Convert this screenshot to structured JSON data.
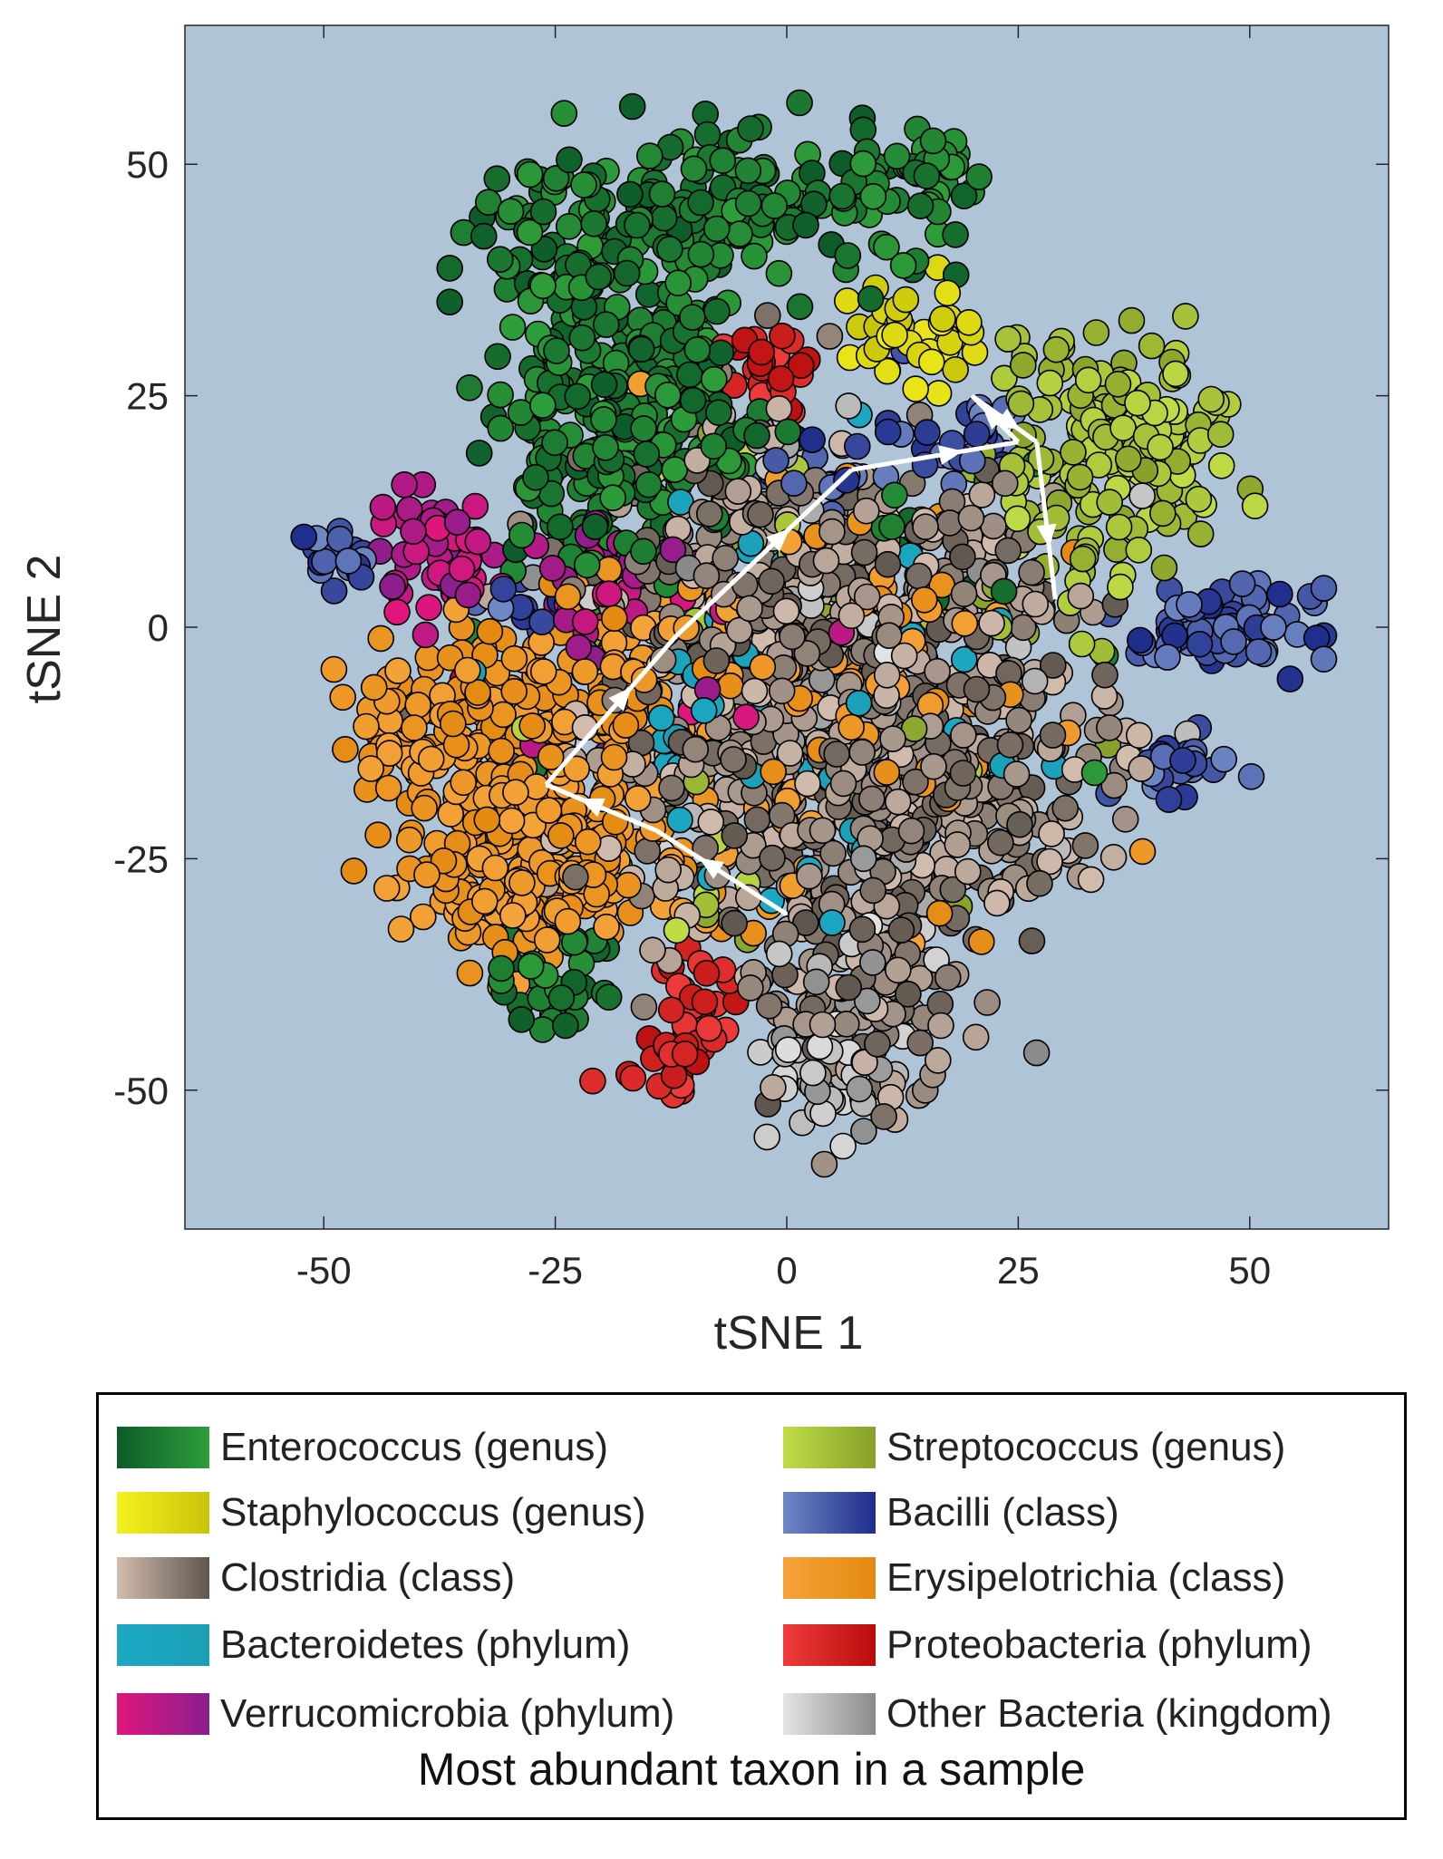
{
  "chart_data": {
    "type": "scatter",
    "title": "",
    "xlabel": "tSNE 1",
    "ylabel": "tSNE 2",
    "xlim": [
      -65,
      65
    ],
    "ylim": [
      -65,
      65
    ],
    "xticks": [
      -50,
      -25,
      0,
      25,
      50
    ],
    "yticks": [
      -50,
      -25,
      0,
      25,
      50
    ],
    "xtick_labels": [
      "-50",
      "-25",
      "0",
      "25",
      "50"
    ],
    "ytick_labels": [
      "-50",
      "-25",
      "0",
      "25",
      "50"
    ],
    "background_color": "#b0c4d8",
    "grid": false,
    "legend_position": "below",
    "legend_caption": "Most abundant taxon in a sample",
    "series": [
      {
        "name": "Enterococcus (genus)",
        "colors": [
          "#0d5b2a",
          "#2e9e3a"
        ],
        "clusters": [
          {
            "cx": -19,
            "cy": 43,
            "sx": 8,
            "sy": 5,
            "n": 110
          },
          {
            "cx": -4,
            "cy": 45,
            "sx": 6,
            "sy": 5,
            "n": 70
          },
          {
            "cx": 11,
            "cy": 46,
            "sx": 5,
            "sy": 4,
            "n": 45
          },
          {
            "cx": 16,
            "cy": 51,
            "sx": 2,
            "sy": 2,
            "n": 18
          },
          {
            "cx": -25,
            "cy": 25,
            "sx": 4,
            "sy": 10,
            "n": 120
          },
          {
            "cx": -16,
            "cy": 18,
            "sx": 5,
            "sy": 6,
            "n": 80
          },
          {
            "cx": -14,
            "cy": 30,
            "sx": 4,
            "sy": 4,
            "n": 50
          },
          {
            "cx": -6,
            "cy": 20,
            "sx": 3,
            "sy": 3,
            "n": 25
          },
          {
            "cx": -25,
            "cy": -38,
            "sx": 3,
            "sy": 3,
            "n": 35
          },
          {
            "cx": 13,
            "cy": 6,
            "sx": 10,
            "sy": 10,
            "n": 18
          }
        ]
      },
      {
        "name": "Staphylococcus (genus)",
        "colors": [
          "#f5f01e",
          "#c8c40a"
        ],
        "clusters": [
          {
            "cx": 13,
            "cy": 32,
            "sx": 4,
            "sy": 3,
            "n": 40
          }
        ]
      },
      {
        "name": "Clostridia (class)",
        "colors": [
          "#d2bcae",
          "#5e564e"
        ],
        "clusters": [
          {
            "cx": 4,
            "cy": -12,
            "sx": 12,
            "sy": 12,
            "n": 520
          },
          {
            "cx": 18,
            "cy": -18,
            "sx": 8,
            "sy": 8,
            "n": 150
          },
          {
            "cx": 8,
            "cy": -40,
            "sx": 5,
            "sy": 7,
            "n": 110
          },
          {
            "cx": -5,
            "cy": 5,
            "sx": 8,
            "sy": 8,
            "n": 140
          },
          {
            "cx": 20,
            "cy": 5,
            "sx": 6,
            "sy": 6,
            "n": 80
          },
          {
            "cx": 36,
            "cy": -13,
            "sx": 2,
            "sy": 2,
            "n": 8
          }
        ]
      },
      {
        "name": "Bacteroidetes (phylum)",
        "colors": [
          "#1ca8c4",
          "#1b9fb5"
        ],
        "clusters": [
          {
            "cx": 3,
            "cy": -8,
            "sx": 12,
            "sy": 12,
            "n": 70
          }
        ]
      },
      {
        "name": "Verrucomicrobia (phylum)",
        "colors": [
          "#e0167d",
          "#8a1e8e"
        ],
        "clusters": [
          {
            "cx": -38,
            "cy": 8,
            "sx": 3,
            "sy": 3,
            "n": 60
          },
          {
            "cx": -20,
            "cy": 5,
            "sx": 3,
            "sy": 3,
            "n": 35
          },
          {
            "cx": -10,
            "cy": 2,
            "sx": 10,
            "sy": 8,
            "n": 15
          }
        ]
      },
      {
        "name": "Streptococcus (genus)",
        "colors": [
          "#c0dc46",
          "#86a02a"
        ],
        "clusters": [
          {
            "cx": 39,
            "cy": 20,
            "sx": 5,
            "sy": 5,
            "n": 110
          },
          {
            "cx": 30,
            "cy": 12,
            "sx": 5,
            "sy": 8,
            "n": 60
          },
          {
            "cx": 27,
            "cy": 27,
            "sx": 2,
            "sy": 2,
            "n": 12
          },
          {
            "cx": 10,
            "cy": 5,
            "sx": 14,
            "sy": 14,
            "n": 30
          },
          {
            "cx": -10,
            "cy": -28,
            "sx": 5,
            "sy": 3,
            "n": 12
          }
        ]
      },
      {
        "name": "Bacilli (class)",
        "colors": [
          "#6f87c4",
          "#1f2d8c"
        ],
        "clusters": [
          {
            "cx": 47,
            "cy": 0,
            "sx": 5,
            "sy": 2,
            "n": 70
          },
          {
            "cx": 42,
            "cy": -15,
            "sx": 3,
            "sy": 1.5,
            "n": 30
          },
          {
            "cx": -49,
            "cy": 8,
            "sx": 2,
            "sy": 2,
            "n": 20
          },
          {
            "cx": -29,
            "cy": 2,
            "sx": 2,
            "sy": 1.5,
            "n": 10
          },
          {
            "cx": 20,
            "cy": 20,
            "sx": 3,
            "sy": 3,
            "n": 25
          },
          {
            "cx": 5,
            "cy": 17,
            "sx": 4,
            "sy": 3,
            "n": 20
          }
        ]
      },
      {
        "name": "Erysipelotrichia (class)",
        "colors": [
          "#f4a33a",
          "#e48a12"
        ],
        "clusters": [
          {
            "cx": -28,
            "cy": -22,
            "sx": 7,
            "sy": 6,
            "n": 260
          },
          {
            "cx": -35,
            "cy": -8,
            "sx": 6,
            "sy": 4,
            "n": 100
          },
          {
            "cx": -18,
            "cy": -5,
            "sx": 5,
            "sy": 5,
            "n": 60
          },
          {
            "cx": 2,
            "cy": -8,
            "sx": 12,
            "sy": 12,
            "n": 130
          },
          {
            "cx": -30,
            "cy": -30,
            "sx": 5,
            "sy": 2,
            "n": 40
          }
        ]
      },
      {
        "name": "Proteobacteria (phylum)",
        "colors": [
          "#ef3b3b",
          "#b80c0c"
        ],
        "clusters": [
          {
            "cx": -11,
            "cy": -43,
            "sx": 3,
            "sy": 4,
            "n": 50
          },
          {
            "cx": -2,
            "cy": 28,
            "sx": 2,
            "sy": 3,
            "n": 25
          },
          {
            "cx": -35,
            "cy": -7,
            "sx": 1,
            "sy": 1,
            "n": 3
          }
        ]
      },
      {
        "name": "Other Bacteria (kingdom)",
        "colors": [
          "#e4e4e4",
          "#8a8a8a"
        ],
        "clusters": [
          {
            "cx": 5,
            "cy": -48,
            "sx": 3,
            "sy": 4,
            "n": 45
          },
          {
            "cx": 10,
            "cy": -33,
            "sx": 6,
            "sy": 6,
            "n": 40
          },
          {
            "cx": 5,
            "cy": 0,
            "sx": 14,
            "sy": 14,
            "n": 50
          }
        ]
      }
    ],
    "trajectory": [
      [
        0,
        -31
      ],
      [
        -14,
        -22
      ],
      [
        -26,
        -17
      ],
      [
        -12,
        -1
      ],
      [
        7,
        17
      ],
      [
        25,
        20
      ],
      [
        20,
        25
      ],
      [
        27,
        20
      ],
      [
        29,
        3
      ]
    ]
  }
}
